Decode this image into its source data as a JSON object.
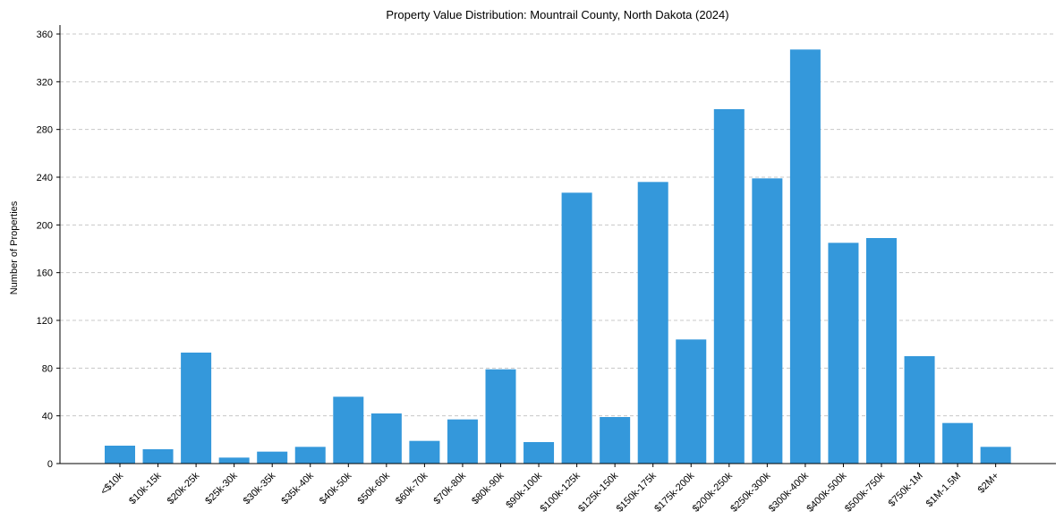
{
  "chart_data": {
    "type": "bar",
    "title": "Property Value Distribution: Mountrail County, North Dakota (2024)",
    "xlabel": "",
    "ylabel": "Number of Properties",
    "ylim": [
      0,
      360
    ],
    "yticks": [
      0,
      40,
      80,
      120,
      160,
      200,
      240,
      280,
      320,
      360
    ],
    "grid": "y-dashed",
    "bar_color": "#3498db",
    "categories": [
      "<$10k",
      "$10k-15k",
      "$20k-25k",
      "$25k-30k",
      "$30k-35k",
      "$35k-40k",
      "$40k-50k",
      "$50k-60k",
      "$60k-70k",
      "$70k-80k",
      "$80k-90k",
      "$90k-100k",
      "$100k-125k",
      "$125k-150k",
      "$150k-175k",
      "$175k-200k",
      "$200k-250k",
      "$250k-300k",
      "$300k-400k",
      "$400k-500k",
      "$500k-750k",
      "$750k-1M",
      "$1M-1.5M",
      "$2M+"
    ],
    "values": [
      15,
      12,
      93,
      5,
      10,
      14,
      56,
      42,
      19,
      37,
      79,
      18,
      227,
      39,
      236,
      104,
      297,
      239,
      347,
      185,
      189,
      90,
      34,
      14
    ]
  }
}
